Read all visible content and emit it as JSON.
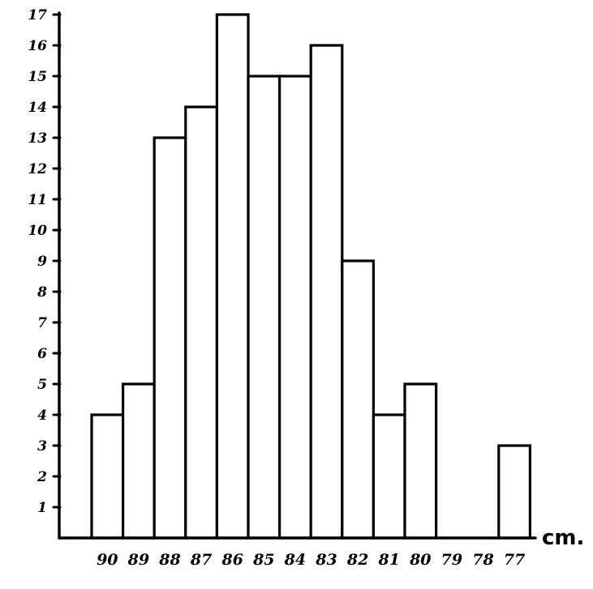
{
  "chart_data": {
    "type": "bar",
    "title": "",
    "xlabel": "cm.",
    "ylabel": "",
    "categories": [
      "90",
      "89",
      "88",
      "87",
      "86",
      "85",
      "84",
      "83",
      "82",
      "81",
      "80",
      "79",
      "78",
      "77"
    ],
    "values": [
      4,
      5,
      13,
      14,
      17,
      15,
      15,
      16,
      9,
      4,
      5,
      0,
      0,
      3
    ],
    "yticks": [
      "1",
      "2",
      "3",
      "4",
      "5",
      "6",
      "7",
      "8",
      "9",
      "10",
      "11",
      "12",
      "13",
      "14",
      "15",
      "16",
      "17"
    ],
    "ylim": [
      0,
      17
    ],
    "grid": false,
    "legend": "none",
    "colors": {
      "bar_fill": "#ffffff",
      "bar_stroke": "#000000",
      "axis": "#000000",
      "background": "#ffffff"
    }
  }
}
